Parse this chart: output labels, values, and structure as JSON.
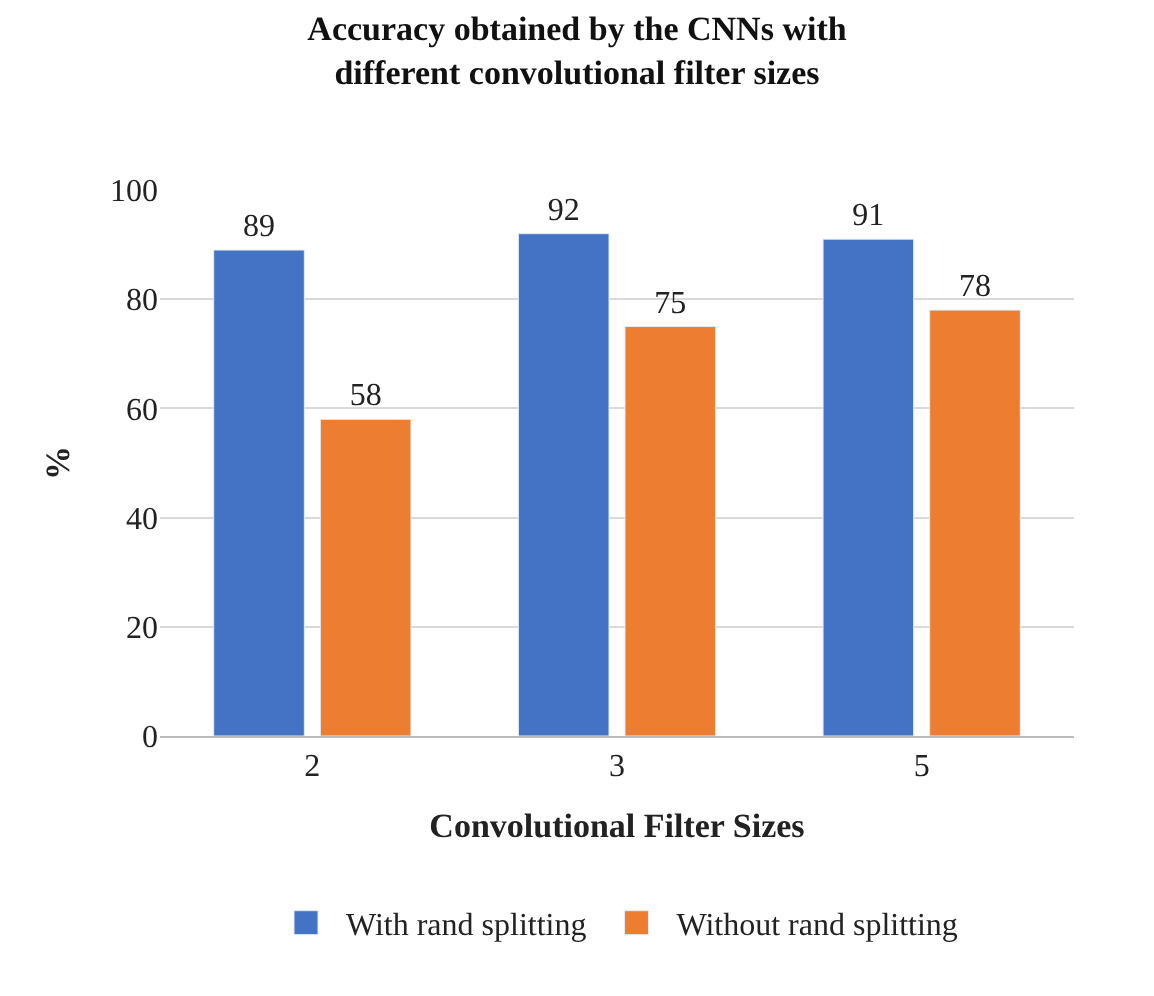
{
  "chart_data": {
    "type": "bar",
    "title": "Accuracy obtained by the CNNs with\ndifferent convolutional filter sizes",
    "xlabel": "Convolutional Filter Sizes",
    "ylabel": "%",
    "categories": [
      "2",
      "3",
      "5"
    ],
    "series": [
      {
        "name": "With rand splitting",
        "color": "#4472c4",
        "values": [
          89,
          92,
          91
        ]
      },
      {
        "name": "Without rand splitting",
        "color": "#ed7d31",
        "values": [
          58,
          75,
          78
        ]
      }
    ],
    "ylim": [
      0,
      100
    ],
    "yticks": [
      0,
      20,
      40,
      60,
      80,
      100
    ],
    "grid": "y",
    "legend": "bottom",
    "data_labels": true
  }
}
